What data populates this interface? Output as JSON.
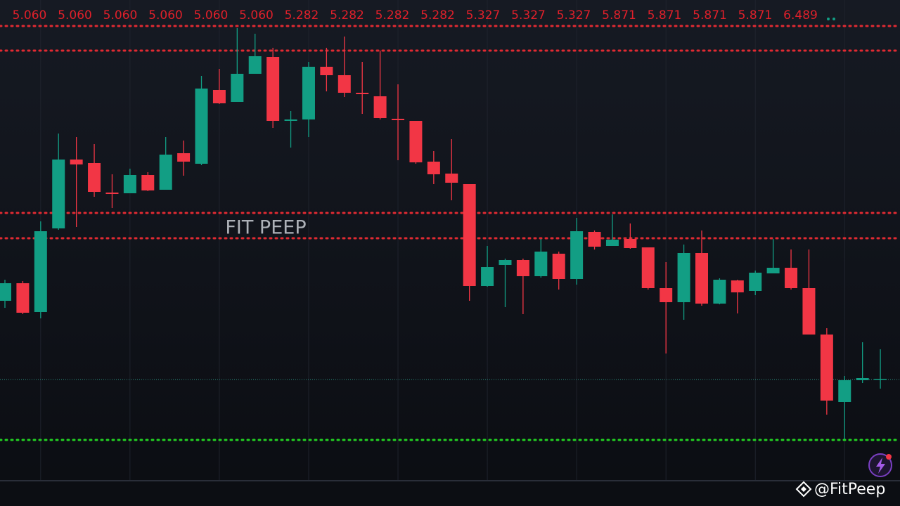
{
  "chart_data": {
    "type": "candlestick",
    "top_labels": [
      "5.060",
      "5.060",
      "5.060",
      "5.060",
      "5.060",
      "5.060",
      "5.282",
      "5.282",
      "5.282",
      "5.282",
      "5.327",
      "5.327",
      "5.327",
      "5.871",
      "5.871",
      "5.871",
      "5.871",
      "6.489"
    ],
    "watermark": "FIT PEEP",
    "handle": "@FitPeep",
    "ylim": [
      0,
      7.2
    ],
    "up_color": "#129e84",
    "down_color": "#f23645",
    "open": [
      2.92,
      3.17,
      2.76,
      3.95,
      4.93,
      4.88,
      4.46,
      4.45,
      4.71,
      4.5,
      5.02,
      4.87,
      5.92,
      5.75,
      6.15,
      6.39,
      5.48,
      5.5,
      6.25,
      6.13,
      5.88,
      5.83,
      5.51,
      5.48,
      4.9,
      4.73,
      4.58,
      3.13,
      3.43,
      3.5,
      3.27,
      3.59,
      3.23,
      3.9,
      3.7,
      3.8,
      3.68,
      3.1,
      2.9,
      3.6,
      2.88,
      3.21,
      3.06,
      3.31,
      3.39,
      3.1,
      2.44,
      1.48,
      1.79,
      1.8
    ],
    "high": [
      3.22,
      3.2,
      4.05,
      5.3,
      5.25,
      5.15,
      4.72,
      4.8,
      4.75,
      5.25,
      5.2,
      6.12,
      6.22,
      6.8,
      6.72,
      6.52,
      5.62,
      6.32,
      6.52,
      6.68,
      6.32,
      6.48,
      6.0,
      5.48,
      5.05,
      5.22,
      4.58,
      3.7,
      3.52,
      3.52,
      3.8,
      3.62,
      4.1,
      3.92,
      4.15,
      4.02,
      3.68,
      3.47,
      3.72,
      3.92,
      3.24,
      3.22,
      3.35,
      3.8,
      3.65,
      3.65,
      2.53,
      1.85,
      2.33,
      2.23
    ],
    "low": [
      2.82,
      2.73,
      2.67,
      3.93,
      3.97,
      4.4,
      4.24,
      4.45,
      4.48,
      4.5,
      4.7,
      4.85,
      5.72,
      5.75,
      6.15,
      5.38,
      5.1,
      5.25,
      5.9,
      5.82,
      5.58,
      5.5,
      4.92,
      4.87,
      4.58,
      4.35,
      2.92,
      3.12,
      2.83,
      2.73,
      3.25,
      3.08,
      3.15,
      3.65,
      3.7,
      3.66,
      3.08,
      2.17,
      2.65,
      2.85,
      2.87,
      2.74,
      3.0,
      3.31,
      3.08,
      2.44,
      1.3,
      0.95,
      1.75,
      1.67
    ],
    "close": [
      3.17,
      2.75,
      3.91,
      4.93,
      4.86,
      4.47,
      4.44,
      4.71,
      4.49,
      5.0,
      4.9,
      5.94,
      5.73,
      6.15,
      6.4,
      5.48,
      5.5,
      6.25,
      6.13,
      5.88,
      5.86,
      5.52,
      5.49,
      4.89,
      4.72,
      4.6,
      3.13,
      3.4,
      3.5,
      3.27,
      3.62,
      3.23,
      3.91,
      3.69,
      3.79,
      3.67,
      3.1,
      2.9,
      3.6,
      2.88,
      3.22,
      3.04,
      3.32,
      3.39,
      3.1,
      2.44,
      1.5,
      1.79,
      1.82,
      1.81
    ],
    "levels": [
      {
        "value": 6.83,
        "color": "#e02a32"
      },
      {
        "value": 6.48,
        "color": "#e02a32"
      },
      {
        "value": 4.17,
        "color": "#e02a32"
      },
      {
        "value": 3.81,
        "color": "#e02a32"
      },
      {
        "value": 0.94,
        "color": "#22d022"
      }
    ],
    "last_price": {
      "value": 1.8,
      "color": "#2a8f80"
    }
  }
}
